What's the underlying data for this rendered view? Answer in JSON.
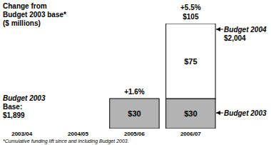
{
  "chart_data": {
    "type": "bar",
    "title": "Change from Budget 2003 base* ($ millions)",
    "categories": [
      "2003/04",
      "2004/05",
      "2005/06",
      "2006/07"
    ],
    "series": [
      {
        "name": "Budget 2003",
        "color": "#b3b3b3",
        "values": [
          null,
          null,
          30,
          30
        ],
        "value_labels": [
          null,
          null,
          "$30",
          "$30"
        ]
      },
      {
        "name": "Budget 2004",
        "color": "#ffffff",
        "values": [
          null,
          null,
          null,
          75
        ],
        "value_labels": [
          null,
          null,
          null,
          "$75"
        ]
      }
    ],
    "stacked": true,
    "data_labels": true,
    "tick_labels": "x",
    "ylim": [
      0,
      105
    ],
    "annotations": [
      {
        "text": "+1.6%",
        "category": "2005/06"
      },
      {
        "text": "+5.5%",
        "category": "2006/07"
      },
      {
        "text": "$105",
        "category": "2006/07"
      },
      {
        "text": "$2,004",
        "series": "Budget 2004"
      },
      {
        "lines": [
          "Budget 2003",
          "Base:",
          "$1,899"
        ]
      }
    ],
    "footnote": "*Cumulative funding lift since and including Budget 2003."
  }
}
